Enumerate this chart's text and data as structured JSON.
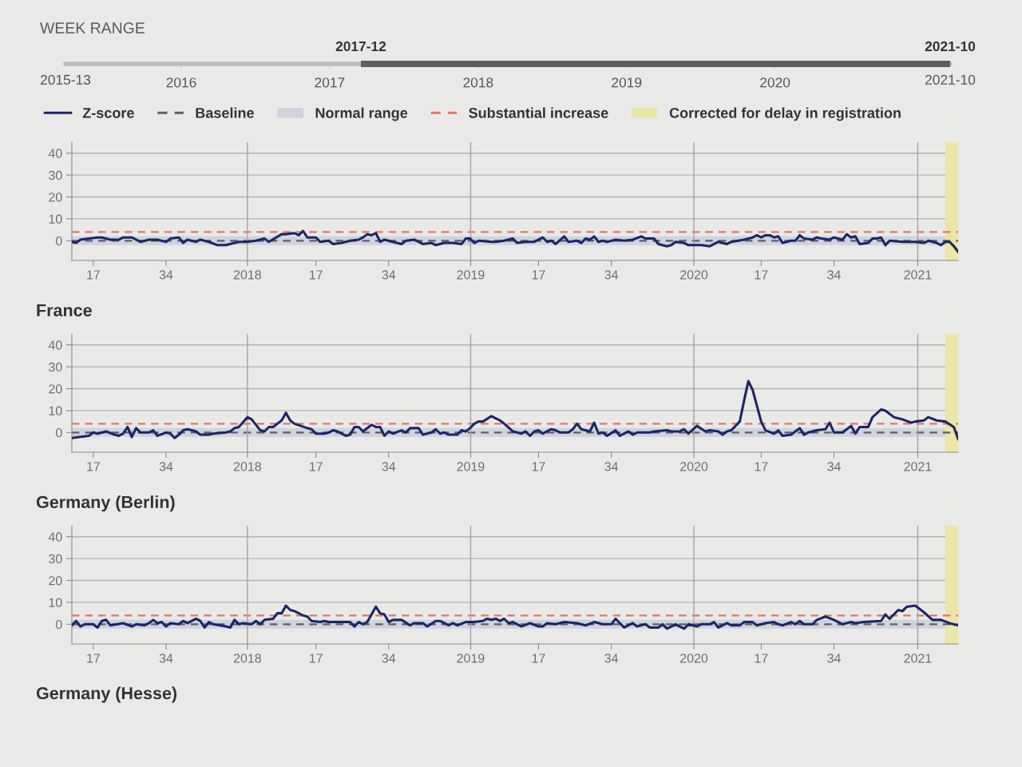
{
  "chart_data": [
    {
      "type": "bar",
      "title": "WEEK RANGE",
      "orientation": "horizontal",
      "categories": [
        null
      ],
      "base": [
        2017.21
      ],
      "values": [
        3.97
      ],
      "color": "#5a5f66",
      "xlim": [
        2015.22,
        2021.18
      ],
      "xticks": [
        2016,
        2017,
        2018,
        2019,
        2020
      ],
      "annotations": [
        "2017-12",
        "2021-10",
        "2015-13",
        "2021-10"
      ]
    },
    {
      "type": "line",
      "series": [
        {
          "name": "Z-score",
          "color": "#1c2566",
          "x": [
            "2017-03-20",
            "2017-03-27",
            "2017-04-03",
            "2017-04-17",
            "2017-05-01",
            "2017-05-08",
            "2017-05-22",
            "2017-06-05",
            "2017-06-12",
            "2017-06-26",
            "2017-07-10",
            "2017-07-24",
            "2017-08-07",
            "2017-08-21",
            "2017-08-28",
            "2017-09-11",
            "2017-09-18",
            "2017-09-25",
            "2017-10-09",
            "2017-10-16",
            "2017-10-30",
            "2017-11-13",
            "2017-11-27",
            "2017-12-11",
            "2017-12-18",
            "2018-01-01",
            "2018-01-15",
            "2018-01-29",
            "2018-02-05",
            "2018-02-26",
            "2018-03-05",
            "2018-03-19",
            "2018-03-26",
            "2018-04-02",
            "2018-04-09",
            "2018-04-23",
            "2018-04-30",
            "2018-05-14",
            "2018-05-21",
            "2018-06-04",
            "2018-06-18",
            "2018-07-02",
            "2018-07-09",
            "2018-07-16",
            "2018-07-23",
            "2018-07-30",
            "2018-08-06",
            "2018-08-13",
            "2018-08-27",
            "2018-09-10",
            "2018-09-17",
            "2018-10-01",
            "2018-10-15",
            "2018-10-29",
            "2018-11-05",
            "2018-11-19",
            "2018-12-03",
            "2018-12-17",
            "2018-12-24",
            "2018-12-31",
            "2019-01-07",
            "2019-01-14",
            "2019-02-04",
            "2019-02-11",
            "2019-02-25",
            "2019-03-11",
            "2019-03-18",
            "2019-04-01",
            "2019-04-15",
            "2019-04-29",
            "2019-05-06",
            "2019-05-13",
            "2019-05-20",
            "2019-06-03",
            "2019-06-10",
            "2019-06-24",
            "2019-07-01",
            "2019-07-08",
            "2019-07-15",
            "2019-07-22",
            "2019-07-29",
            "2019-08-05",
            "2019-08-12",
            "2019-08-26",
            "2019-09-09",
            "2019-09-23",
            "2019-10-07",
            "2019-10-14",
            "2019-10-28",
            "2019-11-04",
            "2019-11-18",
            "2019-11-25",
            "2019-12-02",
            "2019-12-16",
            "2019-12-23",
            "2020-01-13",
            "2020-01-27",
            "2020-02-10",
            "2020-02-24",
            "2020-03-02",
            "2020-03-23",
            "2020-04-06",
            "2020-04-13",
            "2020-04-20",
            "2020-04-27",
            "2020-05-04",
            "2020-05-11",
            "2020-05-18",
            "2020-05-25",
            "2020-06-08",
            "2020-06-15",
            "2020-06-22",
            "2020-06-29",
            "2020-07-13",
            "2020-07-20",
            "2020-07-27",
            "2020-08-10",
            "2020-08-17",
            "2020-08-31",
            "2020-09-07",
            "2020-09-14",
            "2020-09-21",
            "2020-09-28",
            "2020-10-12",
            "2020-10-19",
            "2020-10-26",
            "2020-11-02",
            "2020-11-09",
            "2020-11-16",
            "2020-12-07",
            "2020-12-21",
            "2020-12-28",
            "2021-01-11",
            "2021-01-18",
            "2021-02-01",
            "2021-02-08",
            "2021-02-15",
            "2021-02-22",
            "2021-03-01",
            "2021-03-08"
          ],
          "values": [
            -0.5,
            -1,
            0.5,
            1,
            1.5,
            1.5,
            0.5,
            0.5,
            1.5,
            1.5,
            -0.5,
            0.5,
            0.5,
            -0.5,
            1,
            1.5,
            -1,
            0.5,
            -0.5,
            0.5,
            -0.5,
            -2,
            -2,
            -1,
            -0.5,
            -0.5,
            0,
            1,
            -0.5,
            3,
            3,
            3.5,
            2.5,
            4.5,
            1.5,
            1.5,
            -0.5,
            0,
            -1.5,
            -1,
            0,
            0.5,
            1.5,
            3,
            2.5,
            3.5,
            -0.5,
            0.5,
            -0.5,
            -1.5,
            0,
            0.5,
            -1.5,
            -1,
            -2,
            -1,
            -1,
            -1.5,
            1,
            1,
            -1,
            0,
            -0.5,
            -0.5,
            0,
            1,
            -1,
            -0.5,
            -0.5,
            1.5,
            -0.5,
            0,
            -1.5,
            2,
            -0.5,
            0,
            -1,
            1,
            0.5,
            2,
            -0.5,
            0,
            -0.5,
            0.5,
            0,
            0.5,
            2,
            1,
            1,
            -1.5,
            -2.5,
            -2,
            -0.5,
            -1,
            -2,
            -2,
            -2.5,
            -0.5,
            -1.5,
            -0.5,
            0.5,
            1.5,
            2.5,
            1.5,
            2.5,
            2.5,
            1.5,
            2,
            -1,
            0,
            0,
            2.5,
            1,
            0.5,
            1.5,
            1,
            0.5,
            1.5,
            0.5,
            3,
            1.5,
            2,
            -1.5,
            -1,
            1,
            1,
            1.5,
            -2,
            0,
            -0.5,
            -0.5,
            -0.5,
            -1,
            0,
            -1,
            -2,
            -0.5,
            -0.5,
            -2.5,
            -5
          ]
        }
      ],
      "xlim": [
        "2017-03-20",
        "2021-03-08"
      ],
      "xticks": [
        {
          "value": "2017-04-24",
          "label": "17"
        },
        {
          "value": "2017-08-21",
          "label": "34"
        },
        {
          "value": "2018-01-01",
          "label": "2018"
        },
        {
          "value": "2018-04-23",
          "label": "17"
        },
        {
          "value": "2018-08-20",
          "label": "34"
        },
        {
          "value": "2019-01-01",
          "label": "2019"
        },
        {
          "value": "2019-04-22",
          "label": "17"
        },
        {
          "value": "2019-08-19",
          "label": "34"
        },
        {
          "value": "2020-01-01",
          "label": "2020"
        },
        {
          "value": "2020-04-20",
          "label": "17"
        },
        {
          "value": "2020-08-17",
          "label": "34"
        },
        {
          "value": "2021-01-01",
          "label": "2021"
        }
      ],
      "ylim": [
        -9,
        45
      ],
      "yticks": [
        0,
        10,
        20,
        30,
        40
      ],
      "grid": "y",
      "legend": "top",
      "ref_lines": [
        {
          "axis": "y",
          "value": 0,
          "label": "Baseline",
          "color": "#5b5f68",
          "line_style": "dashed"
        },
        {
          "axis": "y",
          "value": 4,
          "label": "Substantial increase",
          "color": "#e0786a",
          "line_style": "dashed"
        },
        {
          "axis": "x",
          "value": "2018-01-01",
          "color": "#a3a3a3"
        },
        {
          "axis": "x",
          "value": "2019-01-01",
          "color": "#a3a3a3"
        },
        {
          "axis": "x",
          "value": "2020-01-01",
          "color": "#a3a3a3"
        },
        {
          "axis": "x",
          "value": "2021-01-01",
          "color": "#a3a3a3"
        }
      ],
      "bands": [
        {
          "axis": "y",
          "from": -2,
          "to": 2,
          "label": "Normal range",
          "color": "#cfd3dc"
        },
        {
          "axis": "x",
          "from": "2021-02-15",
          "to": "2021-03-08",
          "label": "Corrected for delay in registration",
          "color": "#ebe5a6"
        }
      ]
    },
    {
      "type": "line",
      "title": "France",
      "series": [
        {
          "color": "#1c2566",
          "x": [
            "2017-03-20",
            "2017-04-03",
            "2017-04-17",
            "2017-04-24",
            "2017-05-01",
            "2017-05-15",
            "2017-05-29",
            "2017-06-05",
            "2017-06-12",
            "2017-06-19",
            "2017-06-26",
            "2017-07-03",
            "2017-07-10",
            "2017-07-24",
            "2017-07-31",
            "2017-08-07",
            "2017-08-21",
            "2017-08-28",
            "2017-09-04",
            "2017-09-11",
            "2017-09-18",
            "2017-09-25",
            "2017-10-02",
            "2017-10-09",
            "2017-10-16",
            "2017-10-30",
            "2017-11-06",
            "2017-11-27",
            "2017-12-04",
            "2017-12-11",
            "2017-12-18",
            "2018-01-01",
            "2018-01-08",
            "2018-01-22",
            "2018-01-29",
            "2018-02-05",
            "2018-02-12",
            "2018-02-26",
            "2018-03-05",
            "2018-03-12",
            "2018-03-19",
            "2018-04-09",
            "2018-04-16",
            "2018-04-23",
            "2018-05-07",
            "2018-05-14",
            "2018-05-21",
            "2018-05-28",
            "2018-06-11",
            "2018-06-18",
            "2018-06-25",
            "2018-07-02",
            "2018-07-09",
            "2018-07-23",
            "2018-07-30",
            "2018-08-06",
            "2018-08-13",
            "2018-08-20",
            "2018-08-27",
            "2018-09-10",
            "2018-09-17",
            "2018-09-24",
            "2018-10-08",
            "2018-10-15",
            "2018-10-29",
            "2018-11-05",
            "2018-11-12",
            "2018-11-19",
            "2018-11-26",
            "2018-12-10",
            "2018-12-17",
            "2018-12-24",
            "2018-12-31",
            "2019-01-07",
            "2019-01-14",
            "2019-01-21",
            "2019-02-04",
            "2019-02-11",
            "2019-02-18",
            "2019-02-25",
            "2019-03-11",
            "2019-03-18",
            "2019-03-25",
            "2019-04-01",
            "2019-04-08",
            "2019-04-15",
            "2019-04-22",
            "2019-04-29",
            "2019-05-13",
            "2019-05-20",
            "2019-05-27",
            "2019-06-10",
            "2019-06-17",
            "2019-06-24",
            "2019-07-01",
            "2019-07-15",
            "2019-07-22",
            "2019-07-29",
            "2019-08-05",
            "2019-08-12",
            "2019-08-26",
            "2019-09-02",
            "2019-09-16",
            "2019-09-23",
            "2019-09-30",
            "2019-10-21",
            "2019-10-28",
            "2019-11-18",
            "2019-11-25",
            "2019-12-09",
            "2019-12-16",
            "2019-12-23",
            "2020-01-06",
            "2020-01-20",
            "2020-01-27",
            "2020-02-10",
            "2020-02-17",
            "2020-02-24",
            "2020-03-02",
            "2020-03-16",
            "2020-03-23",
            "2020-03-30",
            "2020-04-06",
            "2020-04-20",
            "2020-04-27",
            "2020-05-11",
            "2020-05-18",
            "2020-05-25",
            "2020-06-08",
            "2020-06-22",
            "2020-06-29",
            "2020-07-06",
            "2020-07-20",
            "2020-08-03",
            "2020-08-10",
            "2020-08-17",
            "2020-08-31",
            "2020-09-14",
            "2020-09-21",
            "2020-09-28",
            "2020-10-12",
            "2020-10-19",
            "2020-11-02",
            "2020-11-09",
            "2020-11-23",
            "2020-12-07",
            "2020-12-21",
            "2020-12-28",
            "2021-01-11",
            "2021-01-18",
            "2021-02-01",
            "2021-02-15",
            "2021-03-01",
            "2021-03-08"
          ],
          "values": [
            -2.5,
            -2,
            -1.5,
            0,
            -0.5,
            0.5,
            -1,
            -1.5,
            -0.5,
            2.5,
            -2,
            2,
            0,
            0,
            1,
            -1.5,
            0,
            -0.5,
            -2.5,
            -1,
            1,
            1.5,
            1,
            0.5,
            -1,
            -1,
            -0.5,
            0,
            0.5,
            2,
            2.5,
            7,
            6,
            1,
            0.5,
            2.5,
            2.5,
            5.5,
            9,
            5.5,
            4,
            2,
            1.5,
            -0.5,
            -0.5,
            0,
            1,
            0.5,
            -1.5,
            -1,
            2.5,
            2.5,
            0.5,
            3.5,
            2.5,
            2.5,
            -1.5,
            0.5,
            -0.5,
            1,
            0,
            2,
            2,
            -1,
            0,
            1.5,
            -0.5,
            0,
            -1,
            -1,
            1,
            0.5,
            2,
            4,
            5,
            5,
            7.5,
            6.5,
            5.5,
            4,
            0.5,
            0,
            -0.5,
            0.5,
            -1.5,
            0.5,
            1,
            -0.5,
            1.5,
            1,
            0,
            0,
            1.5,
            4,
            1.5,
            0.5,
            4.5,
            -0.5,
            0,
            -1.5,
            1,
            -1.5,
            0.5,
            -1,
            0,
            0,
            0.5,
            1,
            0.5,
            0.5,
            1.5,
            -0.5,
            3,
            0.5,
            1,
            0.5,
            -1,
            0.5,
            1,
            5,
            14.5,
            23.5,
            19.5,
            5,
            1,
            -0.5,
            1,
            -1.5,
            -1,
            2,
            -1,
            0,
            1,
            1.5,
            4.5,
            0,
            0,
            3,
            -0.5,
            2.5,
            2.5,
            7,
            10.5,
            10,
            7,
            6,
            4.5,
            5,
            5.5,
            7,
            5.5,
            5,
            2.5,
            -3
          ]
        }
      ],
      "xlim": [
        "2017-03-20",
        "2021-03-08"
      ],
      "xticks": [
        {
          "value": "2017-04-24",
          "label": "17"
        },
        {
          "value": "2017-08-21",
          "label": "34"
        },
        {
          "value": "2018-01-01",
          "label": "2018"
        },
        {
          "value": "2018-04-23",
          "label": "17"
        },
        {
          "value": "2018-08-20",
          "label": "34"
        },
        {
          "value": "2019-01-01",
          "label": "2019"
        },
        {
          "value": "2019-04-22",
          "label": "17"
        },
        {
          "value": "2019-08-19",
          "label": "34"
        },
        {
          "value": "2020-01-01",
          "label": "2020"
        },
        {
          "value": "2020-04-20",
          "label": "17"
        },
        {
          "value": "2020-08-17",
          "label": "34"
        },
        {
          "value": "2021-01-01",
          "label": "2021"
        }
      ],
      "ylim": [
        -9,
        45
      ],
      "yticks": [
        0,
        10,
        20,
        30,
        40
      ],
      "grid": "y",
      "ref_lines": [
        {
          "axis": "y",
          "value": 0,
          "color": "#5b5f68",
          "line_style": "dashed"
        },
        {
          "axis": "y",
          "value": 4,
          "color": "#e0786a",
          "line_style": "dashed"
        },
        {
          "axis": "x",
          "value": "2018-01-01",
          "color": "#a3a3a3"
        },
        {
          "axis": "x",
          "value": "2019-01-01",
          "color": "#a3a3a3"
        },
        {
          "axis": "x",
          "value": "2020-01-01",
          "color": "#a3a3a3"
        },
        {
          "axis": "x",
          "value": "2021-01-01",
          "color": "#a3a3a3"
        }
      ],
      "bands": [
        {
          "axis": "y",
          "from": -2,
          "to": 2,
          "color": "#cfd3dc"
        },
        {
          "axis": "x",
          "from": "2021-02-15",
          "to": "2021-03-08",
          "color": "#ebe5a6"
        }
      ]
    },
    {
      "type": "line",
      "title": "Germany (Berlin)",
      "series": [
        {
          "color": "#1c2566",
          "x": [
            "2017-03-20",
            "2017-03-27",
            "2017-04-03",
            "2017-04-10",
            "2017-04-24",
            "2017-05-01",
            "2017-05-08",
            "2017-05-15",
            "2017-05-22",
            "2017-06-12",
            "2017-06-26",
            "2017-07-03",
            "2017-07-17",
            "2017-07-24",
            "2017-07-31",
            "2017-08-07",
            "2017-08-14",
            "2017-08-21",
            "2017-08-28",
            "2017-09-11",
            "2017-09-18",
            "2017-09-25",
            "2017-10-09",
            "2017-10-16",
            "2017-10-23",
            "2017-10-30",
            "2017-11-06",
            "2017-11-27",
            "2017-12-04",
            "2017-12-11",
            "2017-12-18",
            "2017-12-25",
            "2018-01-08",
            "2018-01-15",
            "2018-01-22",
            "2018-01-29",
            "2018-02-12",
            "2018-02-19",
            "2018-02-26",
            "2018-03-05",
            "2018-03-12",
            "2018-03-19",
            "2018-04-02",
            "2018-04-09",
            "2018-04-16",
            "2018-04-30",
            "2018-05-07",
            "2018-05-14",
            "2018-05-28",
            "2018-06-18",
            "2018-06-25",
            "2018-07-02",
            "2018-07-09",
            "2018-07-16",
            "2018-07-30",
            "2018-08-06",
            "2018-08-13",
            "2018-08-20",
            "2018-08-27",
            "2018-09-10",
            "2018-09-24",
            "2018-10-01",
            "2018-10-15",
            "2018-10-22",
            "2018-11-05",
            "2018-11-12",
            "2018-11-26",
            "2018-12-03",
            "2018-12-10",
            "2018-12-24",
            "2019-01-07",
            "2019-01-21",
            "2019-01-28",
            "2019-02-04",
            "2019-02-11",
            "2019-02-18",
            "2019-02-25",
            "2019-03-04",
            "2019-03-11",
            "2019-03-25",
            "2019-04-08",
            "2019-04-22",
            "2019-04-29",
            "2019-05-06",
            "2019-05-20",
            "2019-06-03",
            "2019-06-24",
            "2019-07-08",
            "2019-07-22",
            "2019-08-05",
            "2019-08-19",
            "2019-08-26",
            "2019-09-09",
            "2019-09-23",
            "2019-09-30",
            "2019-10-14",
            "2019-10-21",
            "2019-11-04",
            "2019-11-11",
            "2019-11-18",
            "2019-12-02",
            "2019-12-16",
            "2019-12-23",
            "2020-01-06",
            "2020-01-13",
            "2020-01-27",
            "2020-02-03",
            "2020-02-10",
            "2020-02-24",
            "2020-03-02",
            "2020-03-16",
            "2020-03-23",
            "2020-04-06",
            "2020-04-13",
            "2020-04-27",
            "2020-05-11",
            "2020-05-18",
            "2020-05-25",
            "2020-06-08",
            "2020-06-15",
            "2020-06-22",
            "2020-06-29",
            "2020-07-13",
            "2020-07-20",
            "2020-08-03",
            "2020-08-17",
            "2020-08-31",
            "2020-09-14",
            "2020-09-21",
            "2020-10-05",
            "2020-11-02",
            "2020-11-09",
            "2020-11-16",
            "2020-11-30",
            "2020-12-07",
            "2020-12-14",
            "2020-12-28",
            "2021-01-11",
            "2021-01-25",
            "2021-02-08",
            "2021-02-22",
            "2021-03-08"
          ],
          "values": [
            -0.5,
            1.5,
            -1,
            0,
            0,
            -1.5,
            1.5,
            2,
            -0.5,
            0.5,
            -1,
            0,
            -0.5,
            0.5,
            2,
            0.5,
            1,
            -1,
            0.5,
            0,
            1.5,
            0.5,
            2.5,
            1.5,
            -1.5,
            1,
            0,
            -1,
            -1.5,
            2,
            0,
            0.5,
            0,
            1.5,
            0,
            2,
            2.5,
            5,
            5,
            8.5,
            6.5,
            6,
            4,
            3.5,
            1.5,
            1,
            1.5,
            1,
            1,
            1,
            -1,
            1,
            0,
            1,
            8,
            5,
            4.5,
            1,
            2,
            2,
            -0.5,
            0.5,
            0.5,
            -1,
            1.5,
            1.5,
            -0.5,
            0.5,
            -0.5,
            1,
            1,
            1.5,
            2.5,
            2,
            2.5,
            1.5,
            2.5,
            0.5,
            1,
            -1,
            0.5,
            -1,
            -1,
            0.5,
            0,
            1,
            0.5,
            -0.5,
            1,
            0,
            0,
            2.5,
            -1.5,
            0.5,
            -1,
            0,
            -1.5,
            -1.5,
            0,
            -2,
            0,
            -2,
            0,
            -1,
            0,
            0,
            1,
            -1.5,
            0.5,
            -0.5,
            -0.5,
            1,
            1,
            -0.5,
            0.5,
            1,
            0,
            -0.5,
            1,
            0,
            1.5,
            0,
            0,
            2,
            3.5,
            2,
            0,
            1,
            0.5,
            1,
            1.5,
            4.5,
            2.5,
            6.5,
            6,
            8,
            8.5,
            5.5,
            2,
            2,
            0.5,
            -0.5
          ]
        }
      ],
      "xlim": [
        "2017-03-20",
        "2021-03-08"
      ],
      "xticks": [
        {
          "value": "2017-04-24",
          "label": "17"
        },
        {
          "value": "2017-08-21",
          "label": "34"
        },
        {
          "value": "2018-01-01",
          "label": "2018"
        },
        {
          "value": "2018-04-23",
          "label": "17"
        },
        {
          "value": "2018-08-20",
          "label": "34"
        },
        {
          "value": "2019-01-01",
          "label": "2019"
        },
        {
          "value": "2019-04-22",
          "label": "17"
        },
        {
          "value": "2019-08-19",
          "label": "34"
        },
        {
          "value": "2020-01-01",
          "label": "2020"
        },
        {
          "value": "2020-04-20",
          "label": "17"
        },
        {
          "value": "2020-08-17",
          "label": "34"
        },
        {
          "value": "2021-01-01",
          "label": "2021"
        }
      ],
      "ylim": [
        -9,
        45
      ],
      "yticks": [
        0,
        10,
        20,
        30,
        40
      ],
      "grid": "y",
      "ref_lines": [
        {
          "axis": "y",
          "value": 0,
          "color": "#5b5f68",
          "line_style": "dashed"
        },
        {
          "axis": "y",
          "value": 4,
          "color": "#e0786a",
          "line_style": "dashed"
        },
        {
          "axis": "x",
          "value": "2018-01-01",
          "color": "#a3a3a3"
        },
        {
          "axis": "x",
          "value": "2019-01-01",
          "color": "#a3a3a3"
        },
        {
          "axis": "x",
          "value": "2020-01-01",
          "color": "#a3a3a3"
        },
        {
          "axis": "x",
          "value": "2021-01-01",
          "color": "#a3a3a3"
        }
      ],
      "bands": [
        {
          "axis": "y",
          "from": -2,
          "to": 2,
          "color": "#cfd3dc"
        },
        {
          "axis": "x",
          "from": "2021-02-15",
          "to": "2021-03-08",
          "color": "#ebe5a6"
        }
      ]
    },
    {
      "type": "other",
      "title": "Germany (Hesse)"
    }
  ]
}
